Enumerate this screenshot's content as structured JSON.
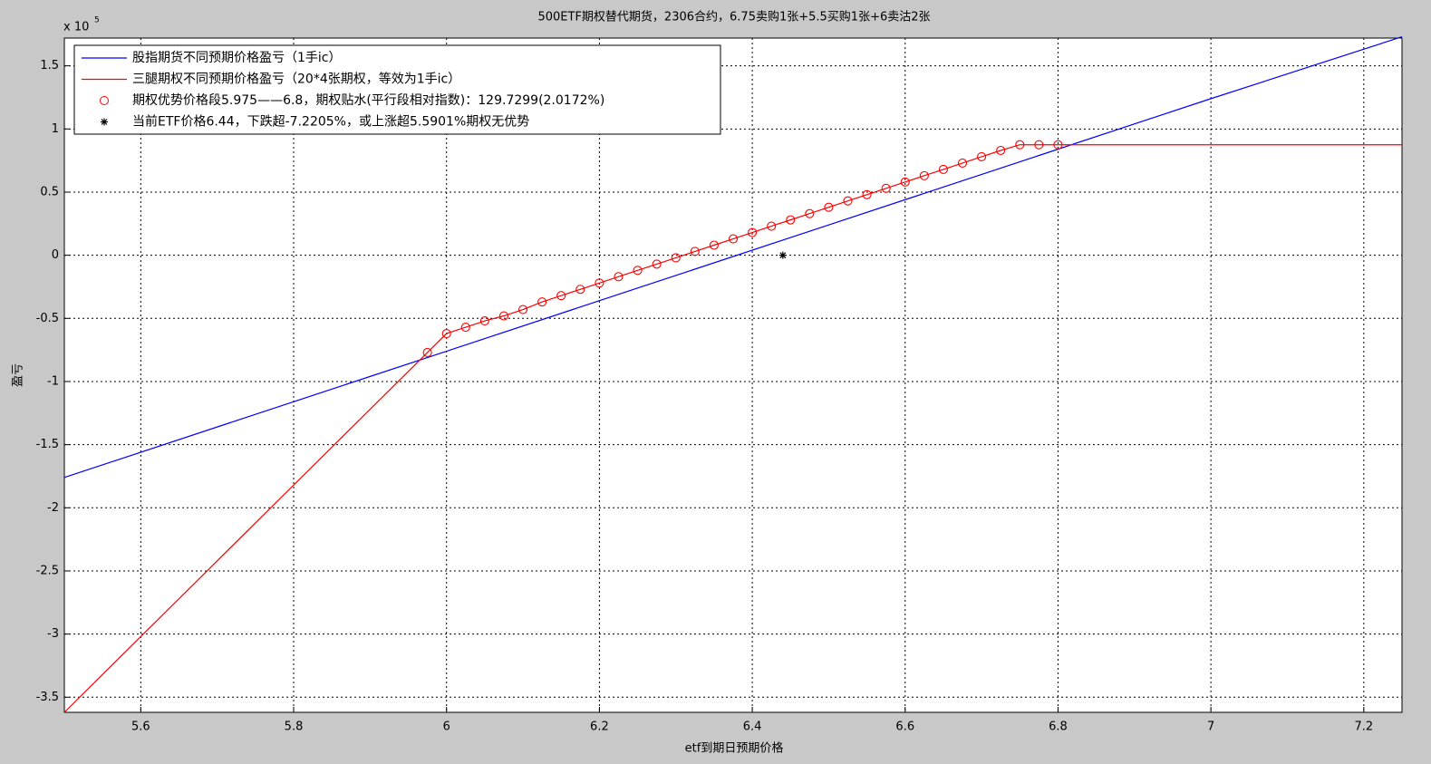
{
  "chart_data": {
    "type": "line",
    "title": "500ETF期权替代期货，2306合约，6.75卖购1张+5.5买购1张+6卖沽2张",
    "x_label": "etf到期日预期价格",
    "y_label": "盈亏",
    "y_multiplier_label": "x 10",
    "y_multiplier_exponent": 5,
    "xlim": [
      5.5,
      7.25
    ],
    "ylim": [
      -3.62,
      1.72
    ],
    "xticks": [
      5.6,
      5.8,
      6,
      6.2,
      6.4,
      6.6,
      6.8,
      7,
      7.2
    ],
    "yticks": [
      -3.5,
      -3,
      -2.5,
      -2,
      -1.5,
      -1,
      -0.5,
      0,
      0.5,
      1,
      1.5
    ],
    "grid": true,
    "legend": "upper left",
    "series": [
      {
        "name": "股指期货不同预期价格盈亏（1手ic）",
        "color": "#0000ff",
        "marker": "none",
        "x": [
          5.5,
          5.75,
          6,
          6.25,
          6.5,
          6.75,
          7,
          7.25
        ],
        "values": [
          -1.76,
          -1.26,
          -0.76,
          -0.26,
          0.24,
          0.74,
          1.24,
          1.73
        ]
      },
      {
        "name": "三腿期权不同预期价格盈亏（20*4张期权，等效为1手ic）",
        "color": "#ff0000",
        "marker": "none",
        "x": [
          5.5,
          5.975,
          6,
          6.025,
          6.05,
          6.075,
          6.1,
          6.125,
          6.15,
          6.175,
          6.2,
          6.225,
          6.25,
          6.275,
          6.3,
          6.325,
          6.35,
          6.375,
          6.4,
          6.425,
          6.45,
          6.475,
          6.5,
          6.525,
          6.55,
          6.575,
          6.6,
          6.625,
          6.65,
          6.675,
          6.7,
          6.725,
          6.75,
          7.25
        ],
        "values": [
          -3.62,
          -0.77,
          -0.62,
          -0.57,
          -0.52,
          -0.48,
          -0.43,
          -0.37,
          -0.32,
          -0.27,
          -0.22,
          -0.17,
          -0.12,
          -0.07,
          -0.02,
          0.03,
          0.08,
          0.13,
          0.18,
          0.23,
          0.28,
          0.33,
          0.38,
          0.43,
          0.48,
          0.53,
          0.58,
          0.63,
          0.68,
          0.73,
          0.78,
          0.83,
          0.875,
          0.875
        ]
      },
      {
        "name": "期权优势价格段5.975——6.8，期权贴水(平行段相对指数)：129.7299(2.0172%)",
        "color": "#ff0000",
        "marker": "o",
        "x": [
          5.975,
          6,
          6.025,
          6.05,
          6.075,
          6.1,
          6.125,
          6.15,
          6.175,
          6.2,
          6.225,
          6.25,
          6.275,
          6.3,
          6.325,
          6.35,
          6.375,
          6.4,
          6.425,
          6.45,
          6.475,
          6.5,
          6.525,
          6.55,
          6.575,
          6.6,
          6.625,
          6.65,
          6.675,
          6.7,
          6.725,
          6.75,
          6.775,
          6.8
        ],
        "values": [
          -0.77,
          -0.62,
          -0.57,
          -0.52,
          -0.48,
          -0.43,
          -0.37,
          -0.32,
          -0.27,
          -0.22,
          -0.17,
          -0.12,
          -0.07,
          -0.02,
          0.03,
          0.08,
          0.13,
          0.18,
          0.23,
          0.28,
          0.33,
          0.38,
          0.43,
          0.48,
          0.53,
          0.58,
          0.63,
          0.68,
          0.73,
          0.78,
          0.83,
          0.875,
          0.875,
          0.875
        ]
      },
      {
        "name": "当前ETF价格6.44，下跌超-7.2205%，或上涨超5.5901%期权无优势",
        "color": "#000000",
        "marker": "*",
        "x": [
          6.44
        ],
        "values": [
          0
        ]
      }
    ]
  }
}
